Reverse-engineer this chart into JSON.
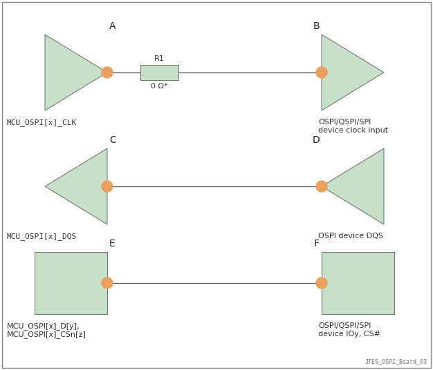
{
  "bg_color": "#ffffff",
  "border_color": "#777777",
  "tri_fill": "#c8dfc8",
  "tri_edge": "#777777",
  "rect_fill": "#c8dfc8",
  "rect_edge": "#777777",
  "dot_color": "#e8a060",
  "line_color": "#555555",
  "resistor_fill": "#c8dfc8",
  "resistor_edge": "#777777",
  "label_A": "A",
  "label_B": "B",
  "label_C": "C",
  "label_D": "D",
  "label_E": "E",
  "label_F": "F",
  "resistor_label": "R1",
  "resistor_value": "0 Ω*",
  "text_A": "MCU_OSPI[x]_CLK",
  "text_B": "OSPI/QSPI/SPI\ndevice clock input",
  "text_C": "MCU_OSPI[x]_DQS",
  "text_D": "OSPI device DQS",
  "text_E": "MCU_OSPI[x]_D[y],\nMCU_OSPI[x]_CSn[z]",
  "text_F": "OSPI/QSPI/SPI\ndevice IOy, CS#",
  "watermark": "JTES_OSPI_Board_03"
}
